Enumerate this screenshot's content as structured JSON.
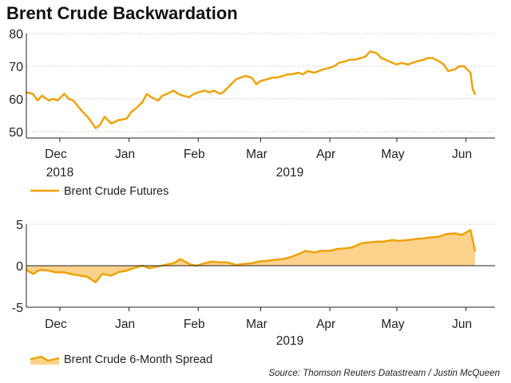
{
  "title": "Brent Crude Backwardation",
  "source": "Source: Thomson Reuters Datastream / Justin McQueen",
  "colors": {
    "line": "#f0a000",
    "fill": "#fcd28c",
    "grid": "#c8c8c8",
    "axis": "#222222"
  },
  "chart_data": [
    {
      "type": "line",
      "title": "",
      "ylim": [
        48,
        80
      ],
      "yticks": [
        50,
        60,
        70,
        80
      ],
      "grid": "horizontal-dotted",
      "legend_position": "bottom-left",
      "month_labels": [
        "Dec",
        "Jan",
        "Feb",
        "Mar",
        "Apr",
        "May",
        "Jun"
      ],
      "year_labels": [
        "2018",
        "2019"
      ],
      "x_range": [
        "2018-11-16",
        "2019-06-14"
      ],
      "series": [
        {
          "name": "Brent Crude Futures",
          "x": [
            "2018-11-16",
            "2018-11-19",
            "2018-11-21",
            "2018-11-23",
            "2018-11-26",
            "2018-11-28",
            "2018-11-30",
            "2018-12-03",
            "2018-12-05",
            "2018-12-07",
            "2018-12-10",
            "2018-12-12",
            "2018-12-14",
            "2018-12-17",
            "2018-12-19",
            "2018-12-21",
            "2018-12-24",
            "2018-12-26",
            "2018-12-27",
            "2018-12-28",
            "2018-12-31",
            "2019-01-02",
            "2019-01-04",
            "2019-01-07",
            "2019-01-09",
            "2019-01-11",
            "2019-01-14",
            "2019-01-16",
            "2019-01-18",
            "2019-01-21",
            "2019-01-23",
            "2019-01-25",
            "2019-01-28",
            "2019-01-30",
            "2019-02-01",
            "2019-02-04",
            "2019-02-06",
            "2019-02-08",
            "2019-02-11",
            "2019-02-13",
            "2019-02-15",
            "2019-02-18",
            "2019-02-20",
            "2019-02-22",
            "2019-02-25",
            "2019-02-27",
            "2019-03-01",
            "2019-03-04",
            "2019-03-06",
            "2019-03-08",
            "2019-03-11",
            "2019-03-13",
            "2019-03-15",
            "2019-03-18",
            "2019-03-20",
            "2019-03-22",
            "2019-03-25",
            "2019-03-27",
            "2019-03-29",
            "2019-04-01",
            "2019-04-03",
            "2019-04-05",
            "2019-04-08",
            "2019-04-10",
            "2019-04-12",
            "2019-04-15",
            "2019-04-17",
            "2019-04-19",
            "2019-04-22",
            "2019-04-24",
            "2019-04-26",
            "2019-04-29",
            "2019-05-01",
            "2019-05-03",
            "2019-05-06",
            "2019-05-08",
            "2019-05-10",
            "2019-05-13",
            "2019-05-15",
            "2019-05-17",
            "2019-05-20",
            "2019-05-22",
            "2019-05-24",
            "2019-05-27",
            "2019-05-29",
            "2019-05-31",
            "2019-06-03",
            "2019-06-04",
            "2019-06-05"
          ],
          "values": [
            62.0,
            61.5,
            59.5,
            61.0,
            59.5,
            60.0,
            59.5,
            61.5,
            60.0,
            59.5,
            57.0,
            55.5,
            54.0,
            51.0,
            52.0,
            54.5,
            52.5,
            53.0,
            53.5,
            53.5,
            54.0,
            56.0,
            57.0,
            59.0,
            61.5,
            60.5,
            59.5,
            61.0,
            61.5,
            62.5,
            61.5,
            61.0,
            60.5,
            61.5,
            62.0,
            62.5,
            62.0,
            62.5,
            61.5,
            62.5,
            64.0,
            66.0,
            66.5,
            67.0,
            66.5,
            64.5,
            65.5,
            66.0,
            66.5,
            66.5,
            67.0,
            67.5,
            67.5,
            68.0,
            67.5,
            68.5,
            68.0,
            68.5,
            69.0,
            69.5,
            70.0,
            71.0,
            71.5,
            72.0,
            72.0,
            72.5,
            73.0,
            74.5,
            74.0,
            72.5,
            72.0,
            71.0,
            70.5,
            71.0,
            70.5,
            71.0,
            71.5,
            72.0,
            72.5,
            72.5,
            71.5,
            70.5,
            68.5,
            69.0,
            70.0,
            70.0,
            68.0,
            63.0,
            61.5
          ]
        }
      ]
    },
    {
      "type": "area",
      "title": "",
      "ylim": [
        -5,
        5
      ],
      "yticks": [
        -5,
        0,
        5
      ],
      "grid": "horizontal-dotted",
      "legend_position": "bottom-left",
      "month_labels": [
        "Dec",
        "Jan",
        "Feb",
        "Mar",
        "Apr",
        "May",
        "Jun"
      ],
      "year_labels": [
        "2019"
      ],
      "x_range": [
        "2018-11-16",
        "2019-06-14"
      ],
      "series": [
        {
          "name": "Brent Crude 6-Month Spread",
          "x": [
            "2018-11-16",
            "2018-11-19",
            "2018-11-22",
            "2018-11-26",
            "2018-11-29",
            "2018-12-03",
            "2018-12-06",
            "2018-12-10",
            "2018-12-13",
            "2018-12-17",
            "2018-12-20",
            "2018-12-24",
            "2018-12-27",
            "2018-12-31",
            "2019-01-03",
            "2019-01-07",
            "2019-01-10",
            "2019-01-14",
            "2019-01-17",
            "2019-01-21",
            "2019-01-24",
            "2019-01-28",
            "2019-01-31",
            "2019-02-04",
            "2019-02-07",
            "2019-02-11",
            "2019-02-14",
            "2019-02-18",
            "2019-02-21",
            "2019-02-25",
            "2019-02-28",
            "2019-03-04",
            "2019-03-07",
            "2019-03-11",
            "2019-03-14",
            "2019-03-18",
            "2019-03-21",
            "2019-03-25",
            "2019-03-28",
            "2019-04-01",
            "2019-04-04",
            "2019-04-08",
            "2019-04-11",
            "2019-04-15",
            "2019-04-18",
            "2019-04-22",
            "2019-04-25",
            "2019-04-29",
            "2019-05-02",
            "2019-05-06",
            "2019-05-09",
            "2019-05-13",
            "2019-05-16",
            "2019-05-20",
            "2019-05-23",
            "2019-05-27",
            "2019-05-30",
            "2019-06-03",
            "2019-06-05"
          ],
          "values": [
            -0.5,
            -1.0,
            -0.5,
            -0.6,
            -0.8,
            -0.8,
            -1.0,
            -1.2,
            -1.3,
            -2.0,
            -1.0,
            -1.2,
            -0.8,
            -0.6,
            -0.3,
            0.0,
            -0.3,
            -0.1,
            0.1,
            0.3,
            0.8,
            0.2,
            0.0,
            0.3,
            0.5,
            0.4,
            0.4,
            0.1,
            0.2,
            0.3,
            0.5,
            0.6,
            0.7,
            0.8,
            1.0,
            1.4,
            1.8,
            1.6,
            1.8,
            1.8,
            2.0,
            2.1,
            2.2,
            2.7,
            2.8,
            2.9,
            2.9,
            3.1,
            3.0,
            3.1,
            3.2,
            3.3,
            3.4,
            3.5,
            3.8,
            3.9,
            3.7,
            4.3,
            1.8
          ]
        }
      ]
    }
  ]
}
